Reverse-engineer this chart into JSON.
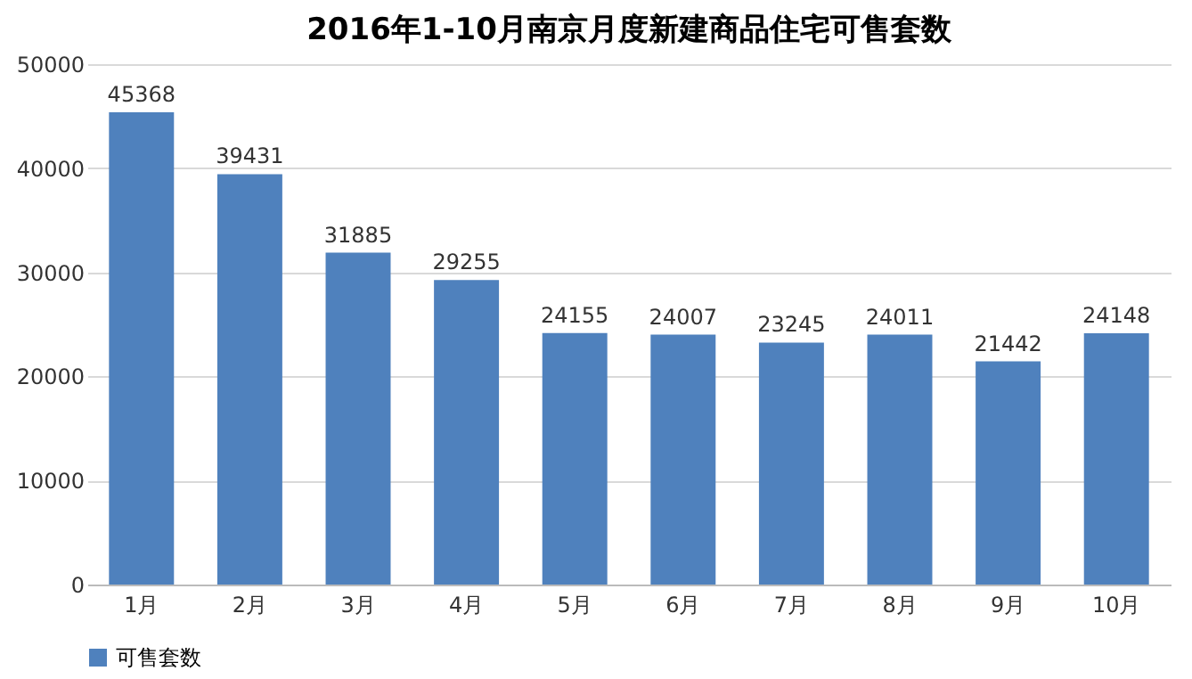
{
  "chart_data": {
    "type": "bar",
    "title": "2016年1-10月南京月度新建商品住宅可售套数",
    "categories": [
      "1月",
      "2月",
      "3月",
      "4月",
      "5月",
      "6月",
      "7月",
      "8月",
      "9月",
      "10月"
    ],
    "series": [
      {
        "name": "可售套数",
        "color": "#4f81bd",
        "values": [
          45368,
          39431,
          31885,
          29255,
          24155,
          24007,
          23245,
          24011,
          21442,
          24148
        ]
      }
    ],
    "ylim": [
      0,
      50000
    ],
    "yticks": [
      0,
      10000,
      20000,
      30000,
      40000,
      50000
    ],
    "grid": "y",
    "data_labels": true,
    "legend": "bottom"
  }
}
